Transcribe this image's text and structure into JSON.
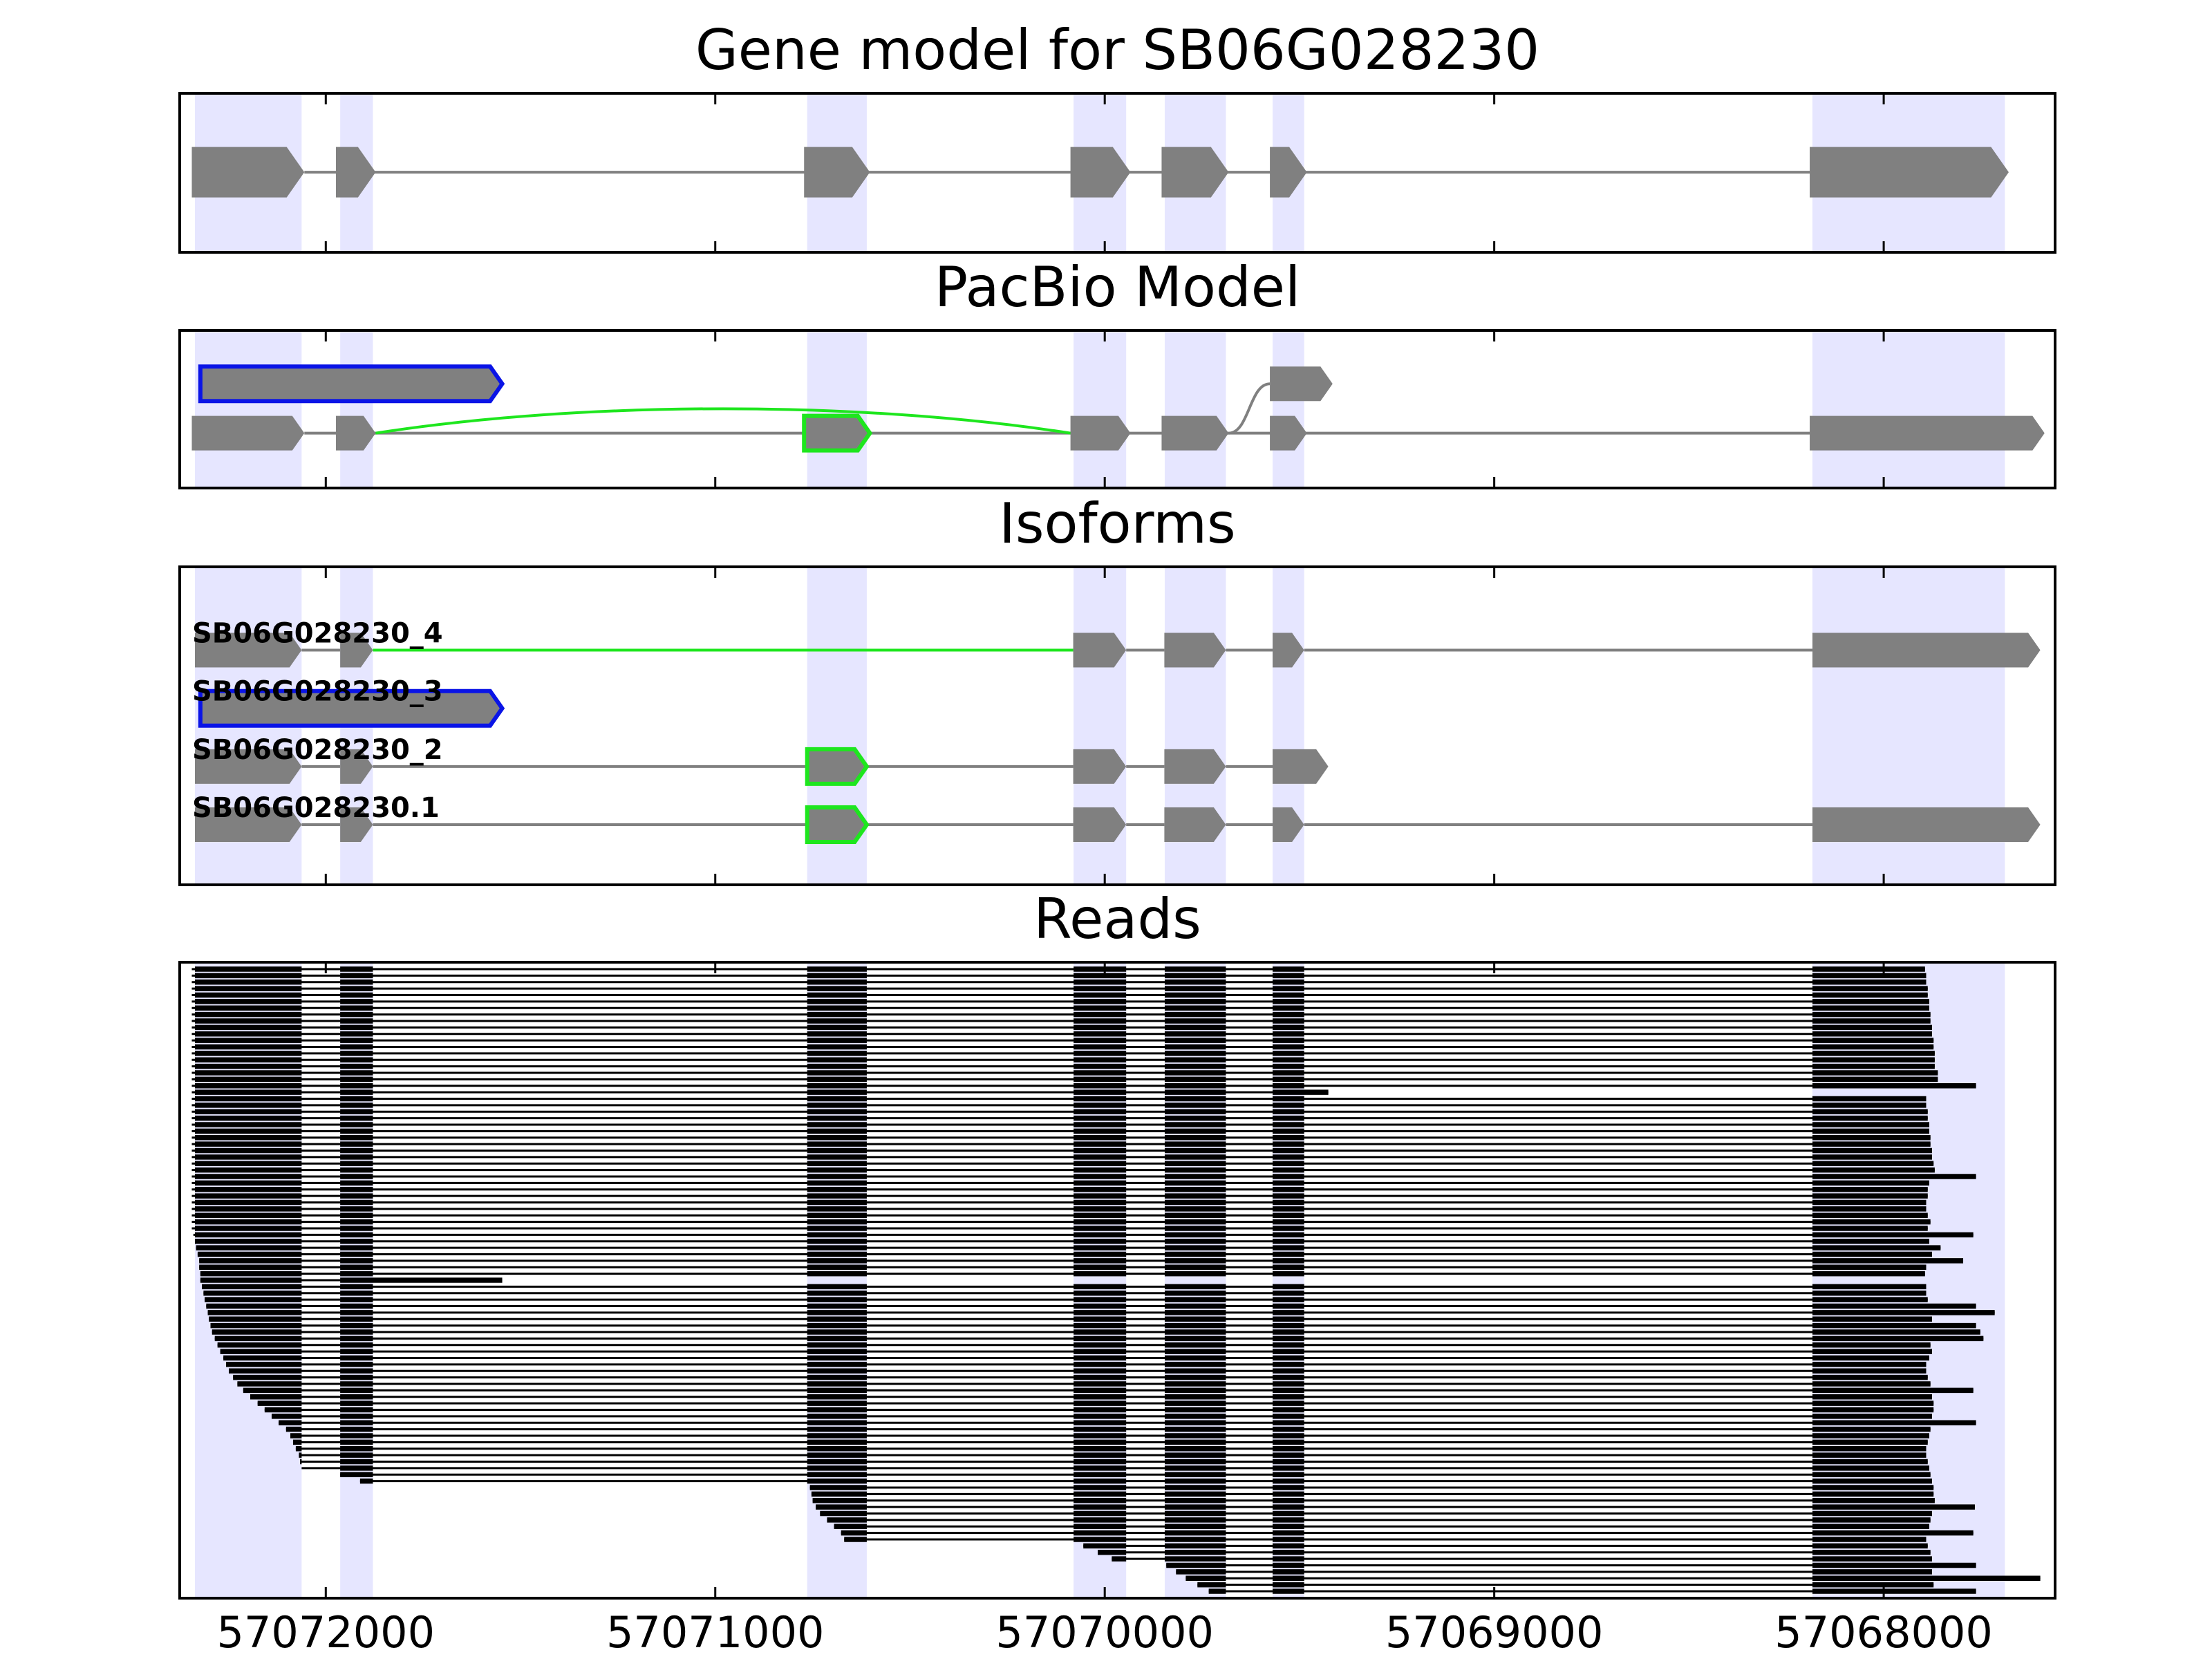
{
  "chart_data": [
    {
      "type": "gene-model",
      "title": "Gene model for SB06G028230",
      "xlim": [
        57072375,
        57067560
      ],
      "xticks": [
        57072000,
        57071000,
        57070000,
        57069000,
        57068000
      ],
      "highlights": [
        [
          57072336,
          57072062
        ],
        [
          57071963,
          57071879
        ],
        [
          57070764,
          57070611
        ],
        [
          57070080,
          57069945
        ],
        [
          57069846,
          57069689
        ],
        [
          57069569,
          57069488
        ],
        [
          57068183,
          57067689
        ]
      ],
      "highlight_color": "#e6e6ff",
      "color": "#808080",
      "exons": [
        [
          57072344,
          57072055
        ],
        [
          57071974,
          57071872
        ],
        [
          57070772,
          57070603
        ],
        [
          57070088,
          57069934
        ],
        [
          57069854,
          57069682
        ],
        [
          57069576,
          57069481
        ],
        [
          57068190,
          57067679
        ]
      ]
    },
    {
      "type": "pacbio",
      "title": "PacBio Model",
      "xlim": [
        57072375,
        57067560
      ],
      "xticks": [
        57072000,
        57071000,
        57070000,
        57069000,
        57068000
      ],
      "highlights": [
        [
          57072336,
          57072062
        ],
        [
          57071963,
          57071879
        ],
        [
          57070764,
          57070611
        ],
        [
          57070080,
          57069945
        ],
        [
          57069846,
          57069689
        ],
        [
          57069569,
          57069488
        ],
        [
          57068183,
          57067689
        ]
      ],
      "highlight_color": "#e6e6ff",
      "color": "#808080",
      "links": [
        {
          "start": 57072055,
          "end": 57068190,
          "from_row": 0,
          "to_row": 0,
          "color": "#808080",
          "curved": false
        },
        {
          "start": 57071872,
          "end": 57070088,
          "from_row": 0,
          "to_row": 0,
          "color": "#1ee61e",
          "curved": true
        },
        {
          "start": 57069682,
          "end": 57069576,
          "from_row": 0,
          "to_row": 1,
          "color": "#808080",
          "curved": true
        }
      ],
      "exons": [
        {
          "start": 57072344,
          "end": 57072055,
          "row": 0
        },
        {
          "start": 57071974,
          "end": 57071872,
          "row": 0
        },
        {
          "start": 57070772,
          "end": 57070603,
          "row": 0,
          "edgecolor": "#1ee61e"
        },
        {
          "start": 57070088,
          "end": 57069934,
          "row": 0
        },
        {
          "start": 57069854,
          "end": 57069682,
          "row": 0
        },
        {
          "start": 57069576,
          "end": 57069481,
          "row": 0
        },
        {
          "start": 57068190,
          "end": 57067587,
          "row": 0
        },
        {
          "start": 57072322,
          "end": 57071547,
          "row": 1,
          "edgecolor": "#0a14e6"
        },
        {
          "start": 57069576,
          "end": 57069415,
          "row": 1
        }
      ]
    },
    {
      "type": "isoforms",
      "title": "Isoforms",
      "xlim": [
        57072375,
        57067560
      ],
      "xticks": [
        57072000,
        57071000,
        57070000,
        57069000,
        57068000
      ],
      "highlights": [
        [
          57072336,
          57072062
        ],
        [
          57071963,
          57071879
        ],
        [
          57070764,
          57070611
        ],
        [
          57070080,
          57069945
        ],
        [
          57069846,
          57069689
        ],
        [
          57069569,
          57069488
        ],
        [
          57068183,
          57067689
        ]
      ],
      "highlight_color": "#e6e6ff",
      "color": "#808080",
      "isoforms": [
        {
          "name": "SB06G028230_4",
          "exons": [
            {
              "start": 57072336,
              "end": 57072062
            },
            {
              "start": 57071963,
              "end": 57071879
            },
            {
              "start": 57070081,
              "end": 57069945
            },
            {
              "start": 57069847,
              "end": 57069689
            },
            {
              "start": 57069569,
              "end": 57069488
            },
            {
              "start": 57068183,
              "end": 57067598
            }
          ],
          "intron_colors": [
            "#808080",
            "#1ee61e",
            "#808080",
            "#808080",
            "#808080"
          ]
        },
        {
          "name": "SB06G028230_3",
          "exons": [
            {
              "start": 57072322,
              "end": 57071547,
              "edgecolor": "#0a14e6"
            }
          ],
          "intron_colors": []
        },
        {
          "name": "SB06G028230_2",
          "exons": [
            {
              "start": 57072336,
              "end": 57072062
            },
            {
              "start": 57071963,
              "end": 57071879
            },
            {
              "start": 57070764,
              "end": 57070611,
              "edgecolor": "#1ee61e"
            },
            {
              "start": 57070081,
              "end": 57069945
            },
            {
              "start": 57069847,
              "end": 57069689
            },
            {
              "start": 57069569,
              "end": 57069426
            }
          ],
          "intron_colors": [
            "#808080",
            "#808080",
            "#808080",
            "#808080",
            "#808080"
          ]
        },
        {
          "name": "SB06G028230.1",
          "exons": [
            {
              "start": 57072336,
              "end": 57072062
            },
            {
              "start": 57071963,
              "end": 57071879
            },
            {
              "start": 57070764,
              "end": 57070611,
              "edgecolor": "#1ee61e"
            },
            {
              "start": 57070081,
              "end": 57069945
            },
            {
              "start": 57069847,
              "end": 57069689
            },
            {
              "start": 57069569,
              "end": 57069488
            },
            {
              "start": 57068183,
              "end": 57067598
            }
          ],
          "intron_colors": [
            "#808080",
            "#808080",
            "#808080",
            "#808080",
            "#808080",
            "#808080"
          ]
        }
      ]
    },
    {
      "type": "reads",
      "title": "Reads",
      "xlim": [
        57072375,
        57067560
      ],
      "xticks": [
        57072000,
        57071000,
        57070000,
        57069000,
        57068000
      ],
      "highlights": [
        [
          57072336,
          57072062
        ],
        [
          57071963,
          57071879
        ],
        [
          57070764,
          57070611
        ],
        [
          57070080,
          57069945
        ],
        [
          57069846,
          57069689
        ],
        [
          57069569,
          57069488
        ],
        [
          57068183,
          57067689
        ]
      ],
      "highlight_color": "#e6e6ff",
      "color": "#000000",
      "starts": [
        57072344,
        57072344,
        57072344,
        57072344,
        57072344,
        57072344,
        57072344,
        57072344,
        57072344,
        57072344,
        57072344,
        57072344,
        57072344,
        57072344,
        57072344,
        57072344,
        57072344,
        57072344,
        57072344,
        57072344,
        57072344,
        57072344,
        57072344,
        57072344,
        57072344,
        57072344,
        57072344,
        57072344,
        57072344,
        57072344,
        57072344,
        57072344,
        57072344,
        57072344,
        57072344,
        57072344,
        57072344,
        57072344,
        57072344,
        57072344,
        57072344,
        57072340,
        57072336,
        57072333,
        57072329,
        57072325,
        57072325,
        57072322,
        57072322,
        57072318,
        57072314,
        57072311,
        57072307,
        57072303,
        57072300,
        57072296,
        57072292,
        57072285,
        57072278,
        57072271,
        57072263,
        57072256,
        57072249,
        57072238,
        57072227,
        57072212,
        57072194,
        57072175,
        57072157,
        57072139,
        57072121,
        57072102,
        57072091,
        57072084,
        57072077,
        57072069,
        57072066,
        57072062,
        57071963,
        57071912,
        57070757,
        57070753,
        57070750,
        57070742,
        57070731,
        57070713,
        57070695,
        57070677,
        57070669,
        57070055,
        57070018,
        57069982,
        57069842,
        57069817,
        57069792,
        57069762,
        57069733
      ],
      "ends": [
        57067894,
        57067891,
        57067891,
        57067887,
        57067887,
        57067883,
        57067883,
        57067880,
        57067880,
        57067876,
        57067876,
        57067872,
        57067872,
        57067869,
        57067869,
        57067869,
        57067861,
        57067861,
        57067763,
        57069426,
        57067891,
        57067891,
        57067887,
        57067887,
        57067883,
        57067883,
        57067880,
        57067880,
        57067876,
        57067876,
        57067872,
        57067869,
        57067763,
        57067883,
        57067887,
        57067887,
        57067891,
        57067891,
        57067887,
        57067880,
        57067887,
        57067770,
        57067883,
        57067854,
        57067876,
        57067796,
        57067891,
        57067894,
        57071547,
        57067891,
        57067891,
        57067887,
        57067763,
        57067715,
        57067876,
        57067763,
        57067752,
        57067744,
        57067880,
        57067876,
        57067883,
        57067891,
        57067891,
        57067887,
        57067880,
        57067770,
        57067876,
        57067872,
        57067872,
        57067876,
        57067763,
        57067880,
        57067883,
        57067887,
        57067891,
        57067891,
        57067887,
        57067883,
        57067880,
        57067876,
        57067872,
        57067872,
        57067869,
        57067766,
        57067876,
        57067880,
        57067883,
        57067770,
        57067891,
        57067887,
        57067880,
        57067876,
        57067763,
        57067876,
        57067598,
        57067872,
        57067763
      ]
    }
  ]
}
